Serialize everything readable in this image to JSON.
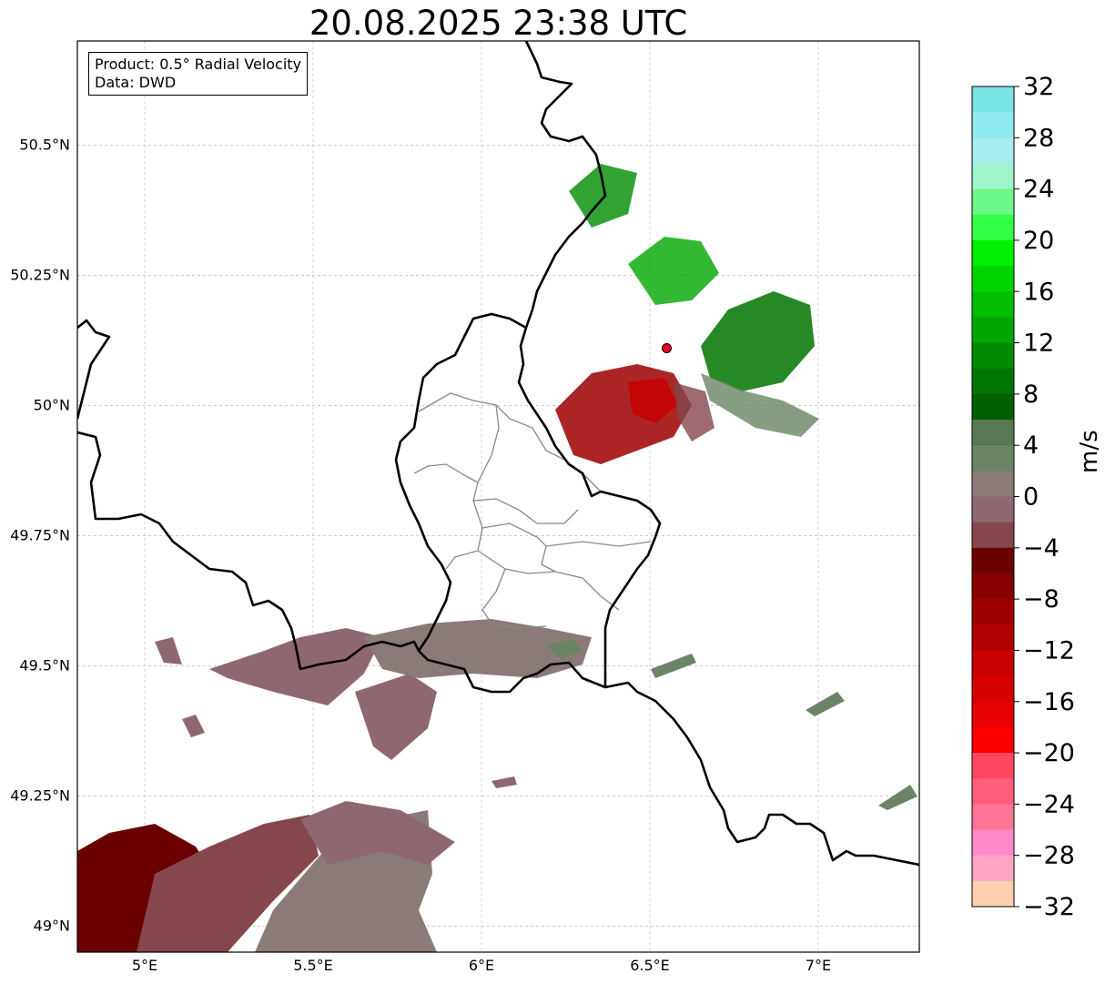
{
  "title": "20.08.2025 23:38 UTC",
  "info": {
    "product": "Product: 0.5° Radial Velocity",
    "data": "Data: DWD"
  },
  "map": {
    "lon_range": [
      4.8,
      7.3
    ],
    "lat_range": [
      48.95,
      50.7
    ],
    "lon_ticks": [
      {
        "value": 5.0,
        "label": "5°E"
      },
      {
        "value": 5.5,
        "label": "5.5°E"
      },
      {
        "value": 6.0,
        "label": "6°E"
      },
      {
        "value": 6.5,
        "label": "6.5°E"
      },
      {
        "value": 7.0,
        "label": "7°E"
      }
    ],
    "lat_ticks": [
      {
        "value": 49.0,
        "label": "49°N"
      },
      {
        "value": 49.25,
        "label": "49.25°N"
      },
      {
        "value": 49.5,
        "label": "49.5°N"
      },
      {
        "value": 49.75,
        "label": "49.75°N"
      },
      {
        "value": 50.0,
        "label": "50°N"
      },
      {
        "value": 50.25,
        "label": "50.25°N"
      },
      {
        "value": 50.5,
        "label": "50.5°N"
      }
    ],
    "radar_site": {
      "lon": 6.55,
      "lat": 50.11,
      "color": "#e8001c"
    },
    "grid": true
  },
  "colorbar": {
    "unit": "m/s",
    "range": [
      -32,
      32
    ],
    "ticks": [
      {
        "value": 32,
        "label": "32"
      },
      {
        "value": 28,
        "label": "28"
      },
      {
        "value": 24,
        "label": "24"
      },
      {
        "value": 20,
        "label": "20"
      },
      {
        "value": 16,
        "label": "16"
      },
      {
        "value": 12,
        "label": "12"
      },
      {
        "value": 8,
        "label": "8"
      },
      {
        "value": 4,
        "label": "4"
      },
      {
        "value": 0,
        "label": "0"
      },
      {
        "value": -4,
        "label": "−4"
      },
      {
        "value": -8,
        "label": "−8"
      },
      {
        "value": -12,
        "label": "−12"
      },
      {
        "value": -16,
        "label": "−16"
      },
      {
        "value": -20,
        "label": "−20"
      },
      {
        "value": -24,
        "label": "−24"
      },
      {
        "value": -28,
        "label": "−28"
      },
      {
        "value": -32,
        "label": "−32"
      }
    ],
    "bands": [
      "#7ae3e6",
      "#8eeaed",
      "#a7ecee",
      "#9ff5cc",
      "#6ff88a",
      "#33ff44",
      "#00f000",
      "#00d400",
      "#00bd00",
      "#00a600",
      "#008c00",
      "#007400",
      "#006000",
      "#577855",
      "#6b8466",
      "#8a7b78",
      "#8f6771",
      "#85464e",
      "#6b0000",
      "#860000",
      "#9e0000",
      "#b20000",
      "#c70000",
      "#d60000",
      "#e60000",
      "#fa0000",
      "#ff4860",
      "#ff5c7e",
      "#ff7598",
      "#ff88c6",
      "#ffa6c6",
      "#ffcfae"
    ]
  }
}
